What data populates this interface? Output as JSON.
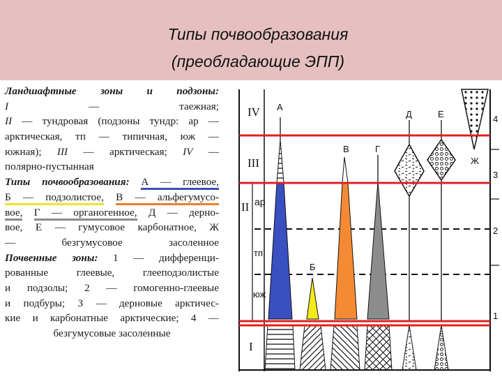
{
  "title": {
    "line1": "Типы почвообразования",
    "line2": "(преобладающие ЭПП)"
  },
  "legend_lines": [
    [
      {
        "t": "Ландшафтные зоны и подзоны:",
        "s": "bi"
      }
    ],
    [
      {
        "t": "I",
        "s": "i"
      },
      {
        "t": " — таежная;"
      }
    ],
    [
      {
        "t": "II",
        "s": "i"
      },
      {
        "t": " — тундровая (подзоны тундр: ар —"
      }
    ],
    [
      {
        "t": "арктическая, тп — типичная, юж —"
      }
    ],
    [
      {
        "t": "южная); "
      },
      {
        "t": "III",
        "s": "i"
      },
      {
        "t": " — арктическая; "
      },
      {
        "t": "IV",
        "s": "i"
      },
      {
        "t": " —"
      }
    ],
    [
      {
        "t": "полярно-пустынная"
      }
    ],
    [
      {
        "t": "Типы почвообразования:",
        "s": "bi"
      },
      {
        "t": " "
      },
      {
        "t": "А — глеевое,",
        "s": "u-blue"
      }
    ],
    [
      {
        "t": "Б — подзолистое,",
        "s": "u-yellow"
      },
      {
        "t": " "
      },
      {
        "t": "В — альфегумусо-",
        "s": "u-orange"
      }
    ],
    [
      {
        "t": "вое,",
        "s": "u-gray"
      },
      {
        "t": " "
      },
      {
        "t": "Г — органогенное,",
        "s": "u-gray"
      },
      {
        "t": " Д — дерно-"
      }
    ],
    [
      {
        "t": "вое, Е — гумусовое карбонатное, Ж"
      }
    ],
    [
      {
        "t": "— безгумусовое засоленное"
      }
    ],
    [
      {
        "t": "Почвенные зоны:",
        "s": "bi"
      },
      {
        "t": " 1 — дифференци-"
      }
    ],
    [
      {
        "t": "рованные глеевые, глееподзолистые"
      }
    ],
    [
      {
        "t": "и подзолы; 2 — гомогенно-глеевые"
      }
    ],
    [
      {
        "t": "и подбуры; 3 — дерновые арктичес-"
      }
    ],
    [
      {
        "t": "кие и карбонатные арктические; 4 —"
      }
    ],
    [
      {
        "t": "безгумусовые засоленные"
      }
    ]
  ],
  "diagram": {
    "zones": [
      "IV",
      "III",
      "II",
      "I"
    ],
    "subzones": [
      "ар",
      "тп",
      "юж"
    ],
    "soil_zones": [
      "4",
      "3",
      "2",
      "1"
    ],
    "types": {
      "a": "А",
      "b": "Б",
      "v": "В",
      "g": "Г",
      "d": "Д",
      "e": "Е",
      "zh": "Ж"
    },
    "colors": {
      "a": "#3a4fc0",
      "b": "#f5ea1a",
      "v": "#f58a35",
      "g": "#8c8c8c",
      "highlight": "#e02020",
      "title_band": "#e6c0c1"
    }
  }
}
